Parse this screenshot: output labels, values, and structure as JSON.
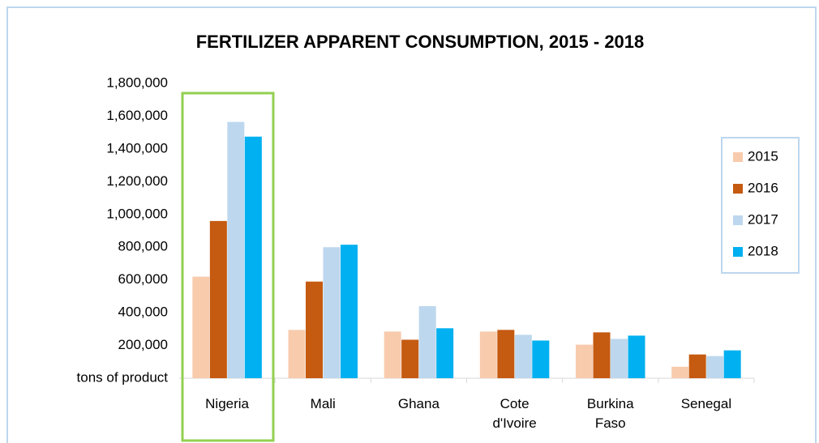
{
  "chart_data": {
    "type": "bar",
    "title": "FERTILIZER APPARENT CONSUMPTION, 2015 - 2018",
    "categories": [
      "Nigeria",
      "Mali",
      "Ghana",
      "Cote d'Ivoire",
      "Burkina Faso",
      "Senegal"
    ],
    "series": [
      {
        "name": "2015",
        "color": "#f8cbad",
        "values": [
          620000,
          295000,
          285000,
          285000,
          205000,
          70000
        ]
      },
      {
        "name": "2016",
        "color": "#c55a11",
        "values": [
          960000,
          590000,
          235000,
          295000,
          280000,
          145000
        ]
      },
      {
        "name": "2017",
        "color": "#bdd7ee",
        "values": [
          1565000,
          800000,
          440000,
          265000,
          240000,
          135000
        ]
      },
      {
        "name": "2018",
        "color": "#00b0f0",
        "values": [
          1475000,
          815000,
          305000,
          230000,
          260000,
          170000
        ]
      }
    ],
    "ylim": [
      0,
      1800000
    ],
    "yticks": [
      {
        "value": 0,
        "label": "tons of product"
      },
      {
        "value": 200000,
        "label": "200,000"
      },
      {
        "value": 400000,
        "label": "400,000"
      },
      {
        "value": 600000,
        "label": "600,000"
      },
      {
        "value": 800000,
        "label": "800,000"
      },
      {
        "value": 1000000,
        "label": "1,000,000"
      },
      {
        "value": 1200000,
        "label": "1,200,000"
      },
      {
        "value": 1400000,
        "label": "1,400,000"
      },
      {
        "value": 1600000,
        "label": "1,600,000"
      },
      {
        "value": 1800000,
        "label": "1,800,000"
      }
    ],
    "legend": "right"
  }
}
